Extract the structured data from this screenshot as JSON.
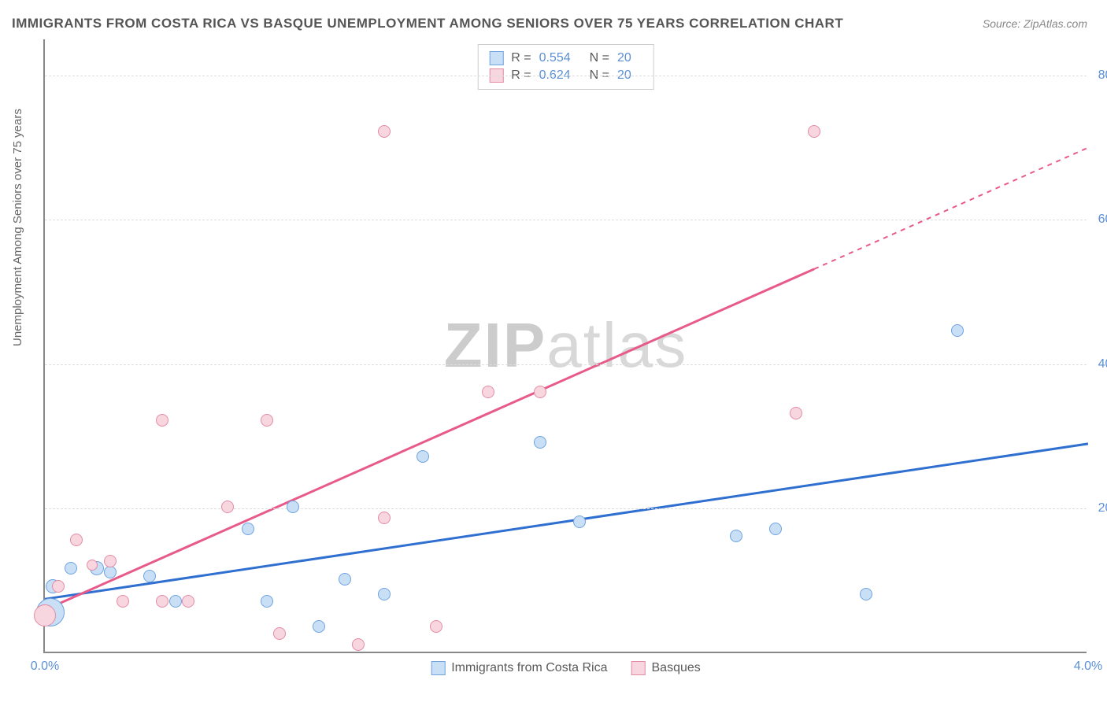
{
  "title": "IMMIGRANTS FROM COSTA RICA VS BASQUE UNEMPLOYMENT AMONG SENIORS OVER 75 YEARS CORRELATION CHART",
  "source": "Source: ZipAtlas.com",
  "watermark": "ZIPatlas",
  "y_axis_title": "Unemployment Among Seniors over 75 years",
  "chart": {
    "type": "scatter",
    "background_color": "#ffffff",
    "grid_color": "#dddddd",
    "axis_color": "#888888",
    "tick_color": "#5b8fd6",
    "tick_fontsize": 16,
    "title_fontsize": 17,
    "xlim": [
      0.0,
      4.0
    ],
    "ylim": [
      0.0,
      85.0
    ],
    "xticks": [
      {
        "v": 0.0,
        "label": "0.0%"
      },
      {
        "v": 4.0,
        "label": "4.0%"
      }
    ],
    "yticks": [
      {
        "v": 20.0,
        "label": "20.0%"
      },
      {
        "v": 40.0,
        "label": "40.0%"
      },
      {
        "v": 60.0,
        "label": "60.0%"
      },
      {
        "v": 80.0,
        "label": "80.0%"
      }
    ],
    "series": [
      {
        "name": "Immigrants from Costa Rica",
        "fill_color": "#c9dff6",
        "stroke_color": "#6fa3e0",
        "line_color": "#2f6fd0",
        "r_value": "0.554",
        "n_value": "20",
        "trend": {
          "x1": 0.0,
          "y1": 7.5,
          "x2": 4.0,
          "y2": 29.0,
          "dash_from_x": 4.0
        },
        "points": [
          {
            "x": 0.02,
            "y": 5.5,
            "r": 18
          },
          {
            "x": 0.03,
            "y": 9.0,
            "r": 9
          },
          {
            "x": 0.1,
            "y": 11.5,
            "r": 8
          },
          {
            "x": 0.2,
            "y": 11.5,
            "r": 9
          },
          {
            "x": 0.25,
            "y": 11.0,
            "r": 8
          },
          {
            "x": 0.4,
            "y": 10.5,
            "r": 8
          },
          {
            "x": 0.5,
            "y": 7.0,
            "r": 8
          },
          {
            "x": 0.78,
            "y": 17.0,
            "r": 8
          },
          {
            "x": 0.85,
            "y": 7.0,
            "r": 8
          },
          {
            "x": 0.95,
            "y": 20.0,
            "r": 8
          },
          {
            "x": 1.05,
            "y": 3.5,
            "r": 8
          },
          {
            "x": 1.15,
            "y": 10.0,
            "r": 8
          },
          {
            "x": 1.3,
            "y": 8.0,
            "r": 8
          },
          {
            "x": 1.45,
            "y": 27.0,
            "r": 8
          },
          {
            "x": 1.9,
            "y": 29.0,
            "r": 8
          },
          {
            "x": 2.05,
            "y": 18.0,
            "r": 8
          },
          {
            "x": 2.65,
            "y": 16.0,
            "r": 8
          },
          {
            "x": 2.8,
            "y": 17.0,
            "r": 8
          },
          {
            "x": 3.15,
            "y": 8.0,
            "r": 8
          },
          {
            "x": 3.5,
            "y": 44.5,
            "r": 8
          }
        ]
      },
      {
        "name": "Basques",
        "fill_color": "#f7d6df",
        "stroke_color": "#e48ba4",
        "line_color": "#e75a8b",
        "r_value": "0.624",
        "n_value": "20",
        "trend": {
          "x1": 0.0,
          "y1": 6.0,
          "x2": 4.0,
          "y2": 70.0,
          "dash_from_x": 2.95
        },
        "points": [
          {
            "x": 0.0,
            "y": 5.0,
            "r": 14
          },
          {
            "x": 0.05,
            "y": 9.0,
            "r": 8
          },
          {
            "x": 0.12,
            "y": 15.5,
            "r": 8
          },
          {
            "x": 0.18,
            "y": 12.0,
            "r": 7
          },
          {
            "x": 0.25,
            "y": 12.5,
            "r": 8
          },
          {
            "x": 0.3,
            "y": 7.0,
            "r": 8
          },
          {
            "x": 0.45,
            "y": 7.0,
            "r": 8
          },
          {
            "x": 0.45,
            "y": 32.0,
            "r": 8
          },
          {
            "x": 0.55,
            "y": 7.0,
            "r": 8
          },
          {
            "x": 0.7,
            "y": 20.0,
            "r": 8
          },
          {
            "x": 0.85,
            "y": 32.0,
            "r": 8
          },
          {
            "x": 0.9,
            "y": 2.5,
            "r": 8
          },
          {
            "x": 1.2,
            "y": 1.0,
            "r": 8
          },
          {
            "x": 1.3,
            "y": 18.5,
            "r": 8
          },
          {
            "x": 1.3,
            "y": 72.0,
            "r": 8
          },
          {
            "x": 1.5,
            "y": 3.5,
            "r": 8
          },
          {
            "x": 1.7,
            "y": 36.0,
            "r": 8
          },
          {
            "x": 1.9,
            "y": 36.0,
            "r": 8
          },
          {
            "x": 2.88,
            "y": 33.0,
            "r": 8
          },
          {
            "x": 2.95,
            "y": 72.0,
            "r": 8
          }
        ]
      }
    ]
  }
}
